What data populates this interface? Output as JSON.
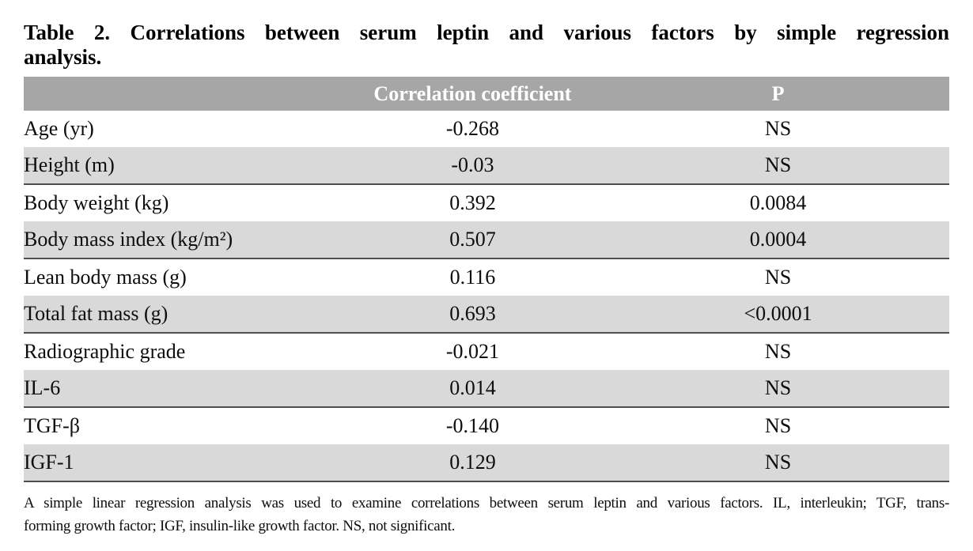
{
  "title": {
    "line1": "Table 2. Correlations between serum leptin and various factors by simple regression",
    "line2": "analysis."
  },
  "table": {
    "columns": [
      "",
      "Correlation coefficient",
      "P"
    ],
    "rows": [
      {
        "factor": "Age (yr)",
        "coefficient": "-0.268",
        "p": "NS"
      },
      {
        "factor": "Height (m)",
        "coefficient": "-0.03",
        "p": "NS"
      },
      {
        "factor": "Body weight (kg)",
        "coefficient": "0.392",
        "p": "0.0084"
      },
      {
        "factor": "Body mass index (kg/m²)",
        "coefficient": "0.507",
        "p": "0.0004"
      },
      {
        "factor": "Lean body mass (g)",
        "coefficient": "0.116",
        "p": "NS"
      },
      {
        "factor": "Total fat mass (g)",
        "coefficient": "0.693",
        "p": "<0.0001"
      },
      {
        "factor": "Radiographic grade",
        "coefficient": "-0.021",
        "p": "NS"
      },
      {
        "factor": "IL-6",
        "coefficient": "0.014",
        "p": "NS"
      },
      {
        "factor": "TGF-β",
        "coefficient": "-0.140",
        "p": "NS"
      },
      {
        "factor": "IGF-1",
        "coefficient": "0.129",
        "p": "NS"
      }
    ]
  },
  "footnote": {
    "line1": "A simple linear regression analysis was used to examine correlations between serum leptin and various factors. IL, interleukin; TGF, trans-",
    "line2": "forming growth factor; IGF, insulin-like growth factor. NS, not significant."
  },
  "colors": {
    "header_bg": "#a6a6a6",
    "header_text": "#ffffff",
    "shaded_row_bg": "#d9d9d9",
    "rule": "#4f4f4f",
    "text": "#0d0d0d"
  }
}
